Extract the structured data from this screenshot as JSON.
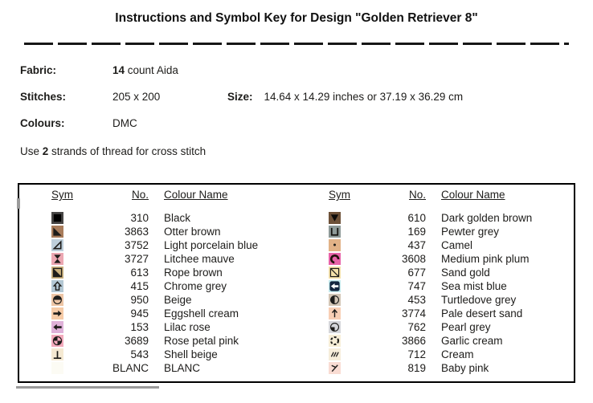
{
  "title": "Instructions and Symbol Key for Design \"Golden Retriever 8\"",
  "specs": {
    "fabric": {
      "label": "Fabric:",
      "bold": "14",
      "rest": " count Aida"
    },
    "stitches": {
      "label": "Stitches:",
      "value": "205 x 200"
    },
    "size": {
      "label": "Size:",
      "value": "14.64 x 14.29 inches or 37.19 x 36.29 cm"
    },
    "colours": {
      "label": "Colours:",
      "value": "DMC"
    },
    "strands": {
      "prefix": "Use ",
      "bold": "2",
      "suffix": " strands of thread for cross stitch"
    }
  },
  "key_table": {
    "headers": {
      "sym": "Sym",
      "no": "No.",
      "name": "Colour Name"
    },
    "columns": {
      "left": [
        {
          "icon": "filled-square-icon",
          "swatch": "#474645",
          "ink": "#000000",
          "no": "310",
          "name": "Black"
        },
        {
          "icon": "lower-left-triangle-icon",
          "swatch": "#a87c5b",
          "ink": "#1d1c1a",
          "no": "3863",
          "name": "Otter brown"
        },
        {
          "icon": "small-triangle-outline-icon",
          "swatch": "#becfdb",
          "ink": "#1d1c1a",
          "no": "3752",
          "name": "Light porcelain blue"
        },
        {
          "icon": "hourglass-icon",
          "swatch": "#eca7b2",
          "ink": "#1d1c1a",
          "no": "3727",
          "name": "Litchee mauve"
        },
        {
          "icon": "square-lower-left-filled-icon",
          "swatch": "#cbb17e",
          "ink": "#1d1c1a",
          "no": "613",
          "name": "Rope brown"
        },
        {
          "icon": "up-arrow-outline-icon",
          "swatch": "#b3c7d3",
          "ink": "#1d1c1a",
          "no": "415",
          "name": "Chrome grey"
        },
        {
          "icon": "circle-top-half-icon",
          "swatch": "#edc5a5",
          "ink": "#1d1c1a",
          "no": "950",
          "name": "Beige"
        },
        {
          "icon": "right-arrow-icon",
          "swatch": "#f6cba7",
          "ink": "#1d1c1a",
          "no": "945",
          "name": "Eggshell cream"
        },
        {
          "icon": "left-arrow-icon",
          "swatch": "#dfb1d9",
          "ink": "#1d1c1a",
          "no": "153",
          "name": "Lilac rose"
        },
        {
          "icon": "circle-quarters-icon",
          "swatch": "#f3aabc",
          "ink": "#1d1c1a",
          "no": "3689",
          "name": "Rose petal pink"
        },
        {
          "icon": "up-tack-icon",
          "swatch": "#f5e9d2",
          "ink": "#1d1c1a",
          "no": "543",
          "name": "Shell beige"
        },
        {
          "icon": "blank-icon",
          "swatch": "#fcfbf4",
          "ink": "#1d1c1a",
          "no": "BLANC",
          "name": "BLANC"
        }
      ],
      "right": [
        {
          "icon": "down-triangle-icon",
          "swatch": "#6d5138",
          "ink": "#0d0c0a",
          "no": "610",
          "name": "Dark golden brown"
        },
        {
          "icon": "square-cup-icon",
          "swatch": "#8e9a98",
          "ink": "#14130f",
          "no": "169",
          "name": "Pewter grey"
        },
        {
          "icon": "dot-icon",
          "swatch": "#e2b287",
          "ink": "#1d1c1a",
          "no": "437",
          "name": "Camel"
        },
        {
          "icon": "open-c-icon",
          "swatch": "#e763a9",
          "ink": "#23120c",
          "no": "3608",
          "name": "Medium pink plum"
        },
        {
          "icon": "square-diagonal-icon",
          "swatch": "#f5e2ab",
          "ink": "#1d1c1a",
          "no": "677",
          "name": "Sand gold"
        },
        {
          "icon": "square-left-arrow-icon",
          "swatch": "#c5ebee",
          "ink": "#14263f",
          "no": "747",
          "name": "Sea mist blue"
        },
        {
          "icon": "circle-left-half-icon",
          "swatch": "#d2c5b5",
          "ink": "#1d1c1a",
          "no": "453",
          "name": "Turtledove grey"
        },
        {
          "icon": "thin-up-arrow-icon",
          "swatch": "#f8cfb5",
          "ink": "#1d1c1a",
          "no": "3774",
          "name": "Pale desert sand"
        },
        {
          "icon": "circle-sw-quarter-icon",
          "swatch": "#d5d6da",
          "ink": "#1d1c1a",
          "no": "762",
          "name": "Pearl grey"
        },
        {
          "icon": "dashed-circle-icon",
          "swatch": "#f7eed7",
          "ink": "#1d1c1a",
          "no": "3866",
          "name": "Garlic cream"
        },
        {
          "icon": "triple-slash-icon",
          "swatch": "#f6edda",
          "ink": "#1d1c1a",
          "no": "712",
          "name": "Cream"
        },
        {
          "icon": "angle-check-icon",
          "swatch": "#f9dcd3",
          "ink": "#1d1c1a",
          "no": "819",
          "name": "Baby pink"
        }
      ]
    }
  }
}
